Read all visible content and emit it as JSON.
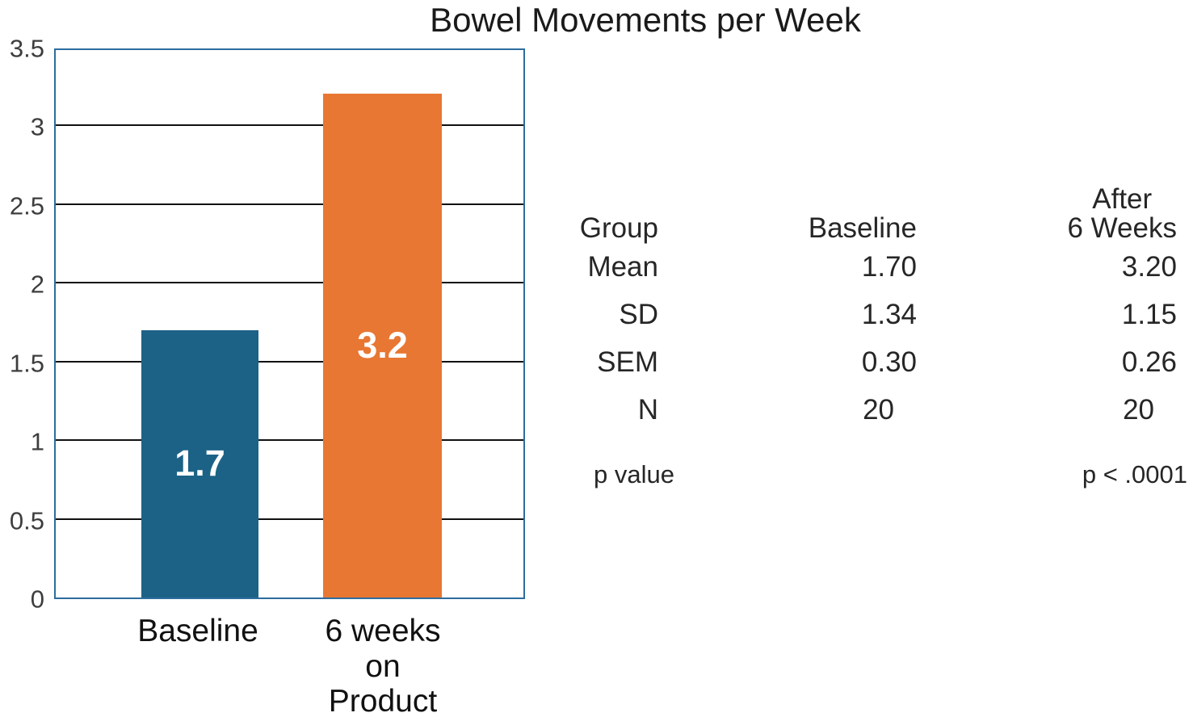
{
  "chart_data": {
    "type": "bar",
    "title": "Bowel Movements per Week",
    "categories": [
      "Baseline",
      "6 weeks\non\nProduct"
    ],
    "values": [
      1.7,
      3.2
    ],
    "bar_labels": [
      "1.7",
      "3.2"
    ],
    "bar_colors": [
      "#1c6286",
      "#e87733"
    ],
    "xlabel": "",
    "ylabel": "",
    "ylim": [
      0,
      3.5
    ],
    "yticks": [
      0,
      0.5,
      1,
      1.5,
      2,
      2.5,
      3,
      3.5
    ],
    "ytick_labels": [
      "0",
      "0.5",
      "1",
      "1.5",
      "2",
      "2.5",
      "3",
      "3.5"
    ],
    "grid": true,
    "gridline_color": "#111111",
    "plot_border_color": "#2d6d9e",
    "legend_position": "none"
  },
  "stats_table": {
    "headers": [
      "Group",
      "Baseline",
      "After\n6 Weeks"
    ],
    "rows": [
      [
        "Mean",
        "1.70",
        "3.20"
      ],
      [
        "SD",
        "1.34",
        "1.15"
      ],
      [
        "SEM",
        "0.30",
        "0.26"
      ],
      [
        "N",
        "20",
        "20"
      ]
    ],
    "p_value_row": {
      "label": "p value",
      "value": "p < .0001"
    }
  }
}
